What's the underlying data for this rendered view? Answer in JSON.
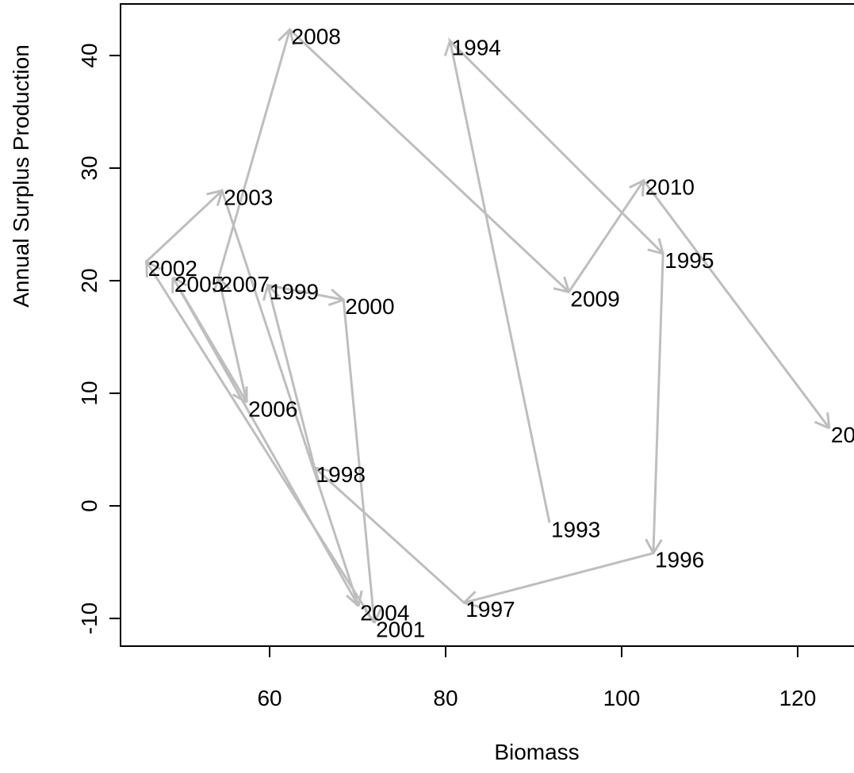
{
  "chart_data": {
    "type": "line",
    "x_label": "Biomass",
    "y_label": "Annual Surplus Production",
    "labels": [
      "1993",
      "1994",
      "1995",
      "1996",
      "1997",
      "1998",
      "1999",
      "2000",
      "2001",
      "2002",
      "2003",
      "2004",
      "2005",
      "2006",
      "2007",
      "2008",
      "2009",
      "2010",
      "20"
    ],
    "x": [
      91.8,
      80.5,
      104.7,
      103.6,
      82.1,
      65.1,
      59.8,
      68.4,
      71.9,
      46.0,
      54.6,
      70.1,
      49.0,
      57.4,
      54.2,
      62.3,
      94.0,
      102.5,
      123.6
    ],
    "values": [
      -1.5,
      41.3,
      22.4,
      -4.2,
      -8.6,
      3.4,
      19.6,
      18.3,
      -10.4,
      21.7,
      28.0,
      -8.9,
      20.3,
      9.2,
      20.3,
      42.3,
      19.0,
      28.9,
      6.9
    ],
    "color": "#bebebe",
    "arrows": true,
    "xlim": [
      43.06,
      126.4
    ],
    "ylim": [
      -12.46,
      44.58
    ],
    "xticks": [
      60,
      80,
      100,
      120
    ],
    "yticks": [
      -10,
      0,
      10,
      20,
      30,
      40
    ]
  }
}
